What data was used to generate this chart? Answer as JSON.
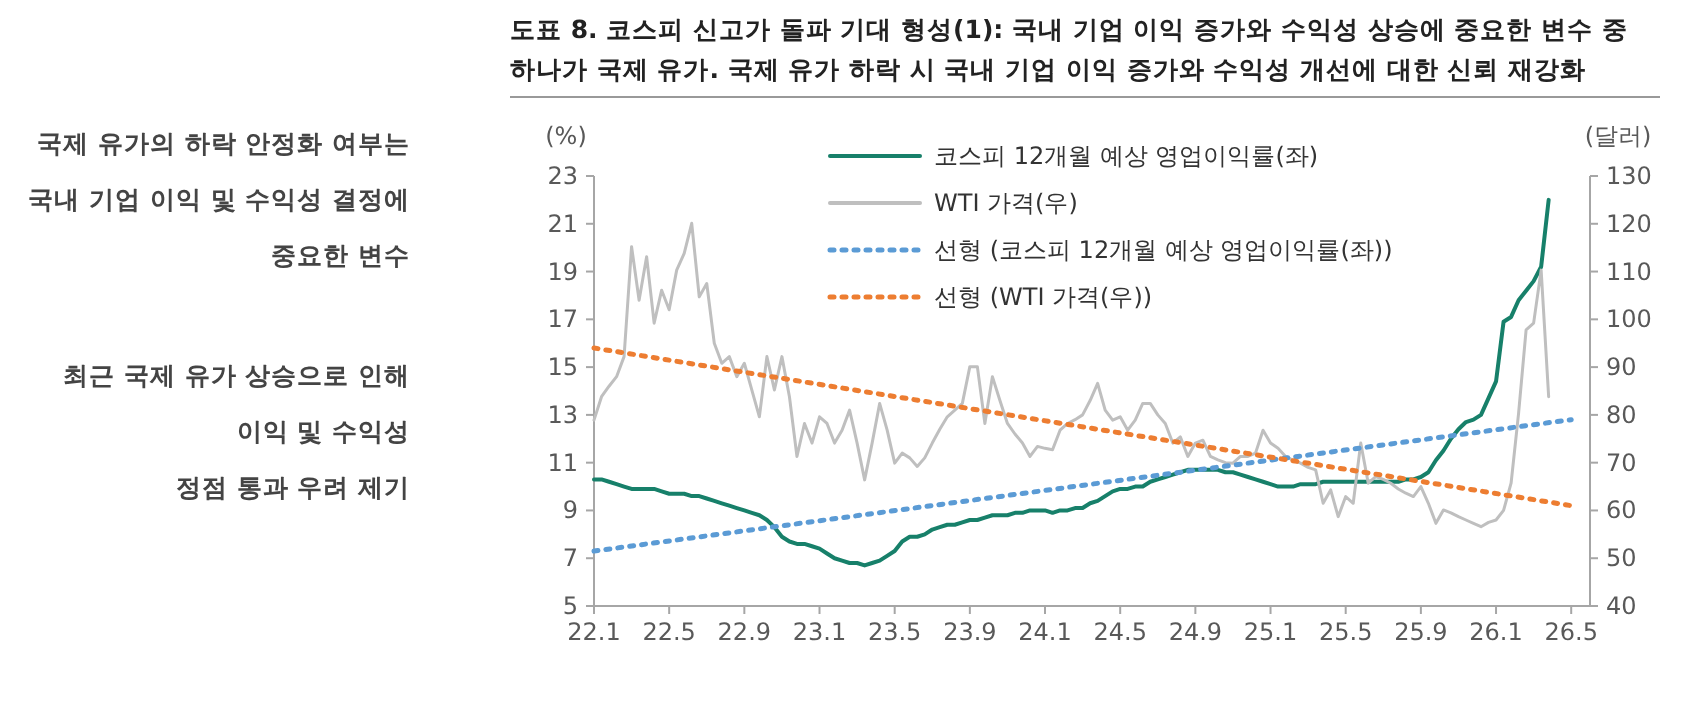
{
  "chart_data": {
    "type": "line",
    "title": "도표 8. 코스피 신고가 돌파 기대 형성(1): 국내 기업 이익 증가와 수익성 상승에 중요한 변수 중 하나가 국제 유가. 국제 유가 하락 시 국내 기업 이익 증가와 수익성 개선에 대한 신뢰 재강화",
    "ylabel": "(%)",
    "y2label": "(달러)",
    "annotations": [
      "국제 유가의 하락 안정화 여부는",
      "국내 기업 이익 및 수익성 결정에",
      "중요한 변수",
      "최근 국제 유가 상승으로 인해",
      "이익 및 수익성",
      "정점 통과 우려 제기"
    ],
    "categories": [
      "22.1",
      null,
      null,
      null,
      null,
      null,
      null,
      null,
      null,
      null,
      "22.5",
      null,
      null,
      null,
      null,
      null,
      null,
      null,
      null,
      null,
      "22.9",
      null,
      null,
      null,
      null,
      null,
      null,
      null,
      null,
      null,
      "23.1",
      null,
      null,
      null,
      null,
      null,
      null,
      null,
      null,
      null,
      "23.5",
      null,
      null,
      null,
      null,
      null,
      null,
      null,
      null,
      null,
      "23.9",
      null,
      null,
      null,
      null,
      null,
      null,
      null,
      null,
      null,
      "24.1",
      null,
      null,
      null,
      null,
      null,
      null,
      null,
      null,
      null,
      "24.5",
      null,
      null,
      null,
      null,
      null,
      null,
      null,
      null,
      null,
      "24.9",
      null,
      null,
      null,
      null,
      null,
      null,
      null,
      null,
      null,
      "25.1",
      null,
      null,
      null,
      null,
      null,
      null,
      null,
      null,
      null,
      "25.5",
      null,
      null,
      null,
      null,
      null,
      null,
      null,
      null,
      null,
      "25.9",
      null,
      null,
      null,
      null,
      null,
      null,
      null,
      null,
      null,
      "26.1",
      null,
      null,
      null,
      null,
      null,
      null,
      null,
      null,
      null,
      "26.5",
      null,
      null
    ],
    "ylim": [
      5,
      23
    ],
    "yticks": [
      5,
      7,
      9,
      11,
      13,
      15,
      17,
      19,
      21,
      23
    ],
    "y2lim": [
      40,
      130
    ],
    "y2ticks": [
      40,
      50,
      60,
      70,
      80,
      90,
      100,
      110,
      120,
      130
    ],
    "legend": "top",
    "grid": false,
    "series": [
      {
        "name": "코스피 12개월 예상 영업이익률(좌)",
        "color": "#17806a",
        "line_style": "solid",
        "values": [
          10.3,
          10.3,
          10.2,
          10.1,
          10.0,
          9.9,
          9.9,
          9.9,
          9.9,
          9.8,
          9.7,
          9.7,
          9.7,
          9.6,
          9.6,
          9.5,
          9.4,
          9.3,
          9.2,
          9.1,
          9.0,
          8.9,
          8.8,
          8.6,
          8.3,
          7.9,
          7.7,
          7.6,
          7.6,
          7.5,
          7.4,
          7.2,
          7.0,
          6.9,
          6.8,
          6.8,
          6.7,
          6.8,
          6.9,
          7.1,
          7.3,
          7.7,
          7.9,
          7.9,
          8.0,
          8.2,
          8.3,
          8.4,
          8.4,
          8.5,
          8.6,
          8.6,
          8.7,
          8.8,
          8.8,
          8.8,
          8.9,
          8.9,
          9.0,
          9.0,
          9.0,
          8.9,
          9.0,
          9.0,
          9.1,
          9.1,
          9.3,
          9.4,
          9.6,
          9.8,
          9.9,
          9.9,
          10.0,
          10.0,
          10.2,
          10.3,
          10.4,
          10.5,
          10.6,
          10.7,
          10.7,
          10.7,
          10.7,
          10.7,
          10.6,
          10.6,
          10.5,
          10.4,
          10.3,
          10.2,
          10.1,
          10.0,
          10.0,
          10.0,
          10.1,
          10.1,
          10.1,
          10.2,
          10.2,
          10.2,
          10.2,
          10.2,
          10.2,
          10.2,
          10.2,
          10.2,
          10.2,
          10.2,
          10.3,
          10.3,
          10.4,
          10.6,
          11.1,
          11.5,
          12.0,
          12.4,
          12.7,
          12.8,
          13.0,
          13.7,
          14.4,
          16.9,
          17.1,
          17.8,
          18.2,
          18.6,
          19.2,
          22.0,
          null,
          null,
          null,
          null,
          null
        ]
      },
      {
        "name": "WTI 가격(우)",
        "color": "#bfbfbf",
        "line_style": "solid",
        "axis": "y2",
        "values": [
          78.9,
          83.8,
          86,
          88,
          92.2,
          115.2,
          104,
          113.1,
          99.2,
          106.1,
          102,
          110.3,
          113.8,
          120.1,
          104.7,
          107.5,
          95,
          90.8,
          92.2,
          88,
          90.8,
          85.2,
          79.6,
          92.2,
          85.2,
          92.2,
          83.8,
          71.3,
          78.2,
          74.1,
          79.6,
          78.2,
          74.1,
          76.8,
          81,
          74.1,
          66.4,
          74.1,
          82.4,
          76.8,
          69.9,
          72,
          71,
          69.2,
          71,
          74.1,
          77,
          79.6,
          81,
          82.4,
          90.1,
          90.1,
          78.2,
          88,
          83,
          78.2,
          76,
          74.1,
          71.3,
          73.4,
          73,
          72.7,
          76.8,
          78.2,
          79,
          80,
          83,
          86.6,
          81,
          78.9,
          79.6,
          76.8,
          78.9,
          82.4,
          82.4,
          80,
          78.2,
          74.1,
          75.4,
          71.3,
          74.1,
          74.7,
          71.3,
          70.6,
          70,
          69.9,
          71.3,
          71.3,
          72,
          76.8,
          74.1,
          73,
          71.3,
          70.5,
          69.9,
          69,
          68.5,
          61.5,
          64.3,
          58.7,
          62.9,
          61.5,
          74.1,
          65.7,
          67.1,
          66.5,
          65.7,
          64.5,
          63.6,
          62.9,
          65,
          61.5,
          57.3,
          60.1,
          59.5,
          58.7,
          58,
          57.3,
          56.6,
          57.5,
          58,
          60,
          65.7,
          80.3,
          97.8,
          99.2,
          110.3,
          83.8,
          null,
          null,
          null,
          null,
          null
        ]
      },
      {
        "name": "선형 (코스피 12개월 예상 영업이익률(좌))",
        "color": "#5b9bd5",
        "line_style": "dotted",
        "x": [
          "22.1",
          "26.5"
        ],
        "values": [
          7.3,
          12.8
        ]
      },
      {
        "name": "선형 (WTI 가격(우))",
        "color": "#ed7d31",
        "line_style": "dotted",
        "axis": "y2",
        "x": [
          "22.1",
          "26.5"
        ],
        "values": [
          94,
          61
        ]
      }
    ]
  }
}
